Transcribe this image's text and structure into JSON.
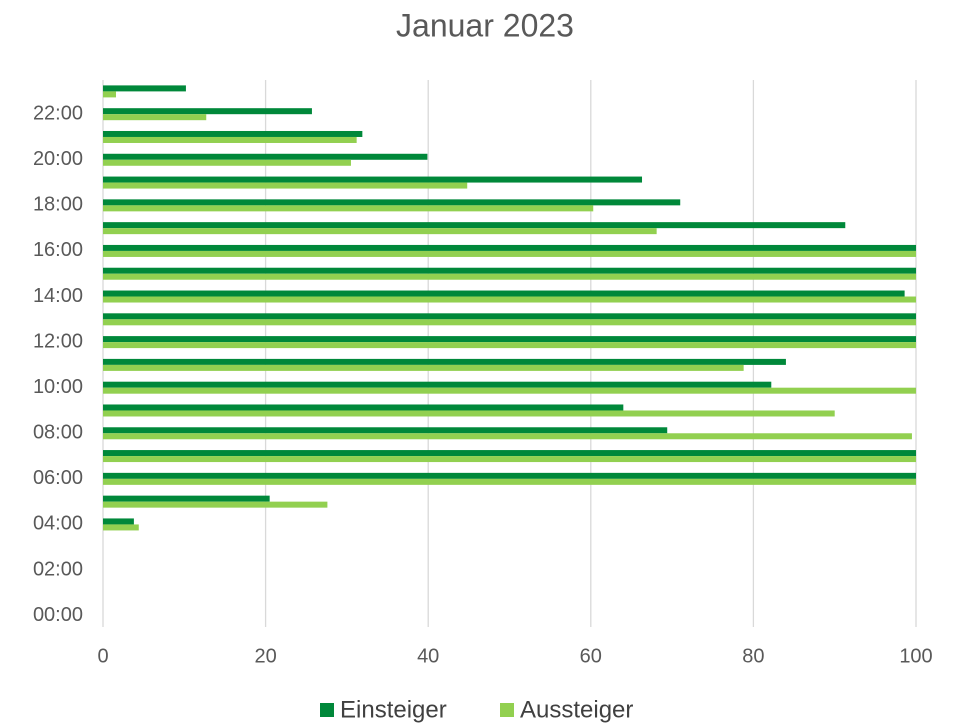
{
  "chart_data": {
    "type": "hbar",
    "title": "Januar 2023",
    "categories": [
      "00:00",
      null,
      "02:00",
      null,
      "04:00",
      null,
      "06:00",
      null,
      "08:00",
      null,
      "10:00",
      null,
      "12:00",
      null,
      "14:00",
      null,
      "16:00",
      null,
      "18:00",
      null,
      "20:00",
      null,
      "22:00",
      null
    ],
    "series": [
      {
        "name": "Einsteiger",
        "color": "#00883a",
        "values": [
          0,
          0,
          0,
          0,
          3.8,
          20.5,
          100,
          100,
          69.4,
          64,
          82.2,
          84,
          100,
          100,
          98.6,
          100,
          100,
          91.3,
          71,
          66.3,
          39.9,
          31.9,
          25.7,
          10.2
        ]
      },
      {
        "name": "Aussteiger",
        "color": "#92d050",
        "values": [
          0,
          0,
          0,
          0,
          4.4,
          27.6,
          100,
          100,
          99.5,
          90,
          100,
          78.8,
          100,
          100,
          100,
          100,
          100,
          68.1,
          60.3,
          44.8,
          30.5,
          31.2,
          12.7,
          1.6
        ]
      }
    ],
    "xlim": [
      0,
      100
    ],
    "xticks": [
      0,
      20,
      40,
      60,
      80,
      100
    ],
    "grid": true,
    "legend": "bottom"
  }
}
